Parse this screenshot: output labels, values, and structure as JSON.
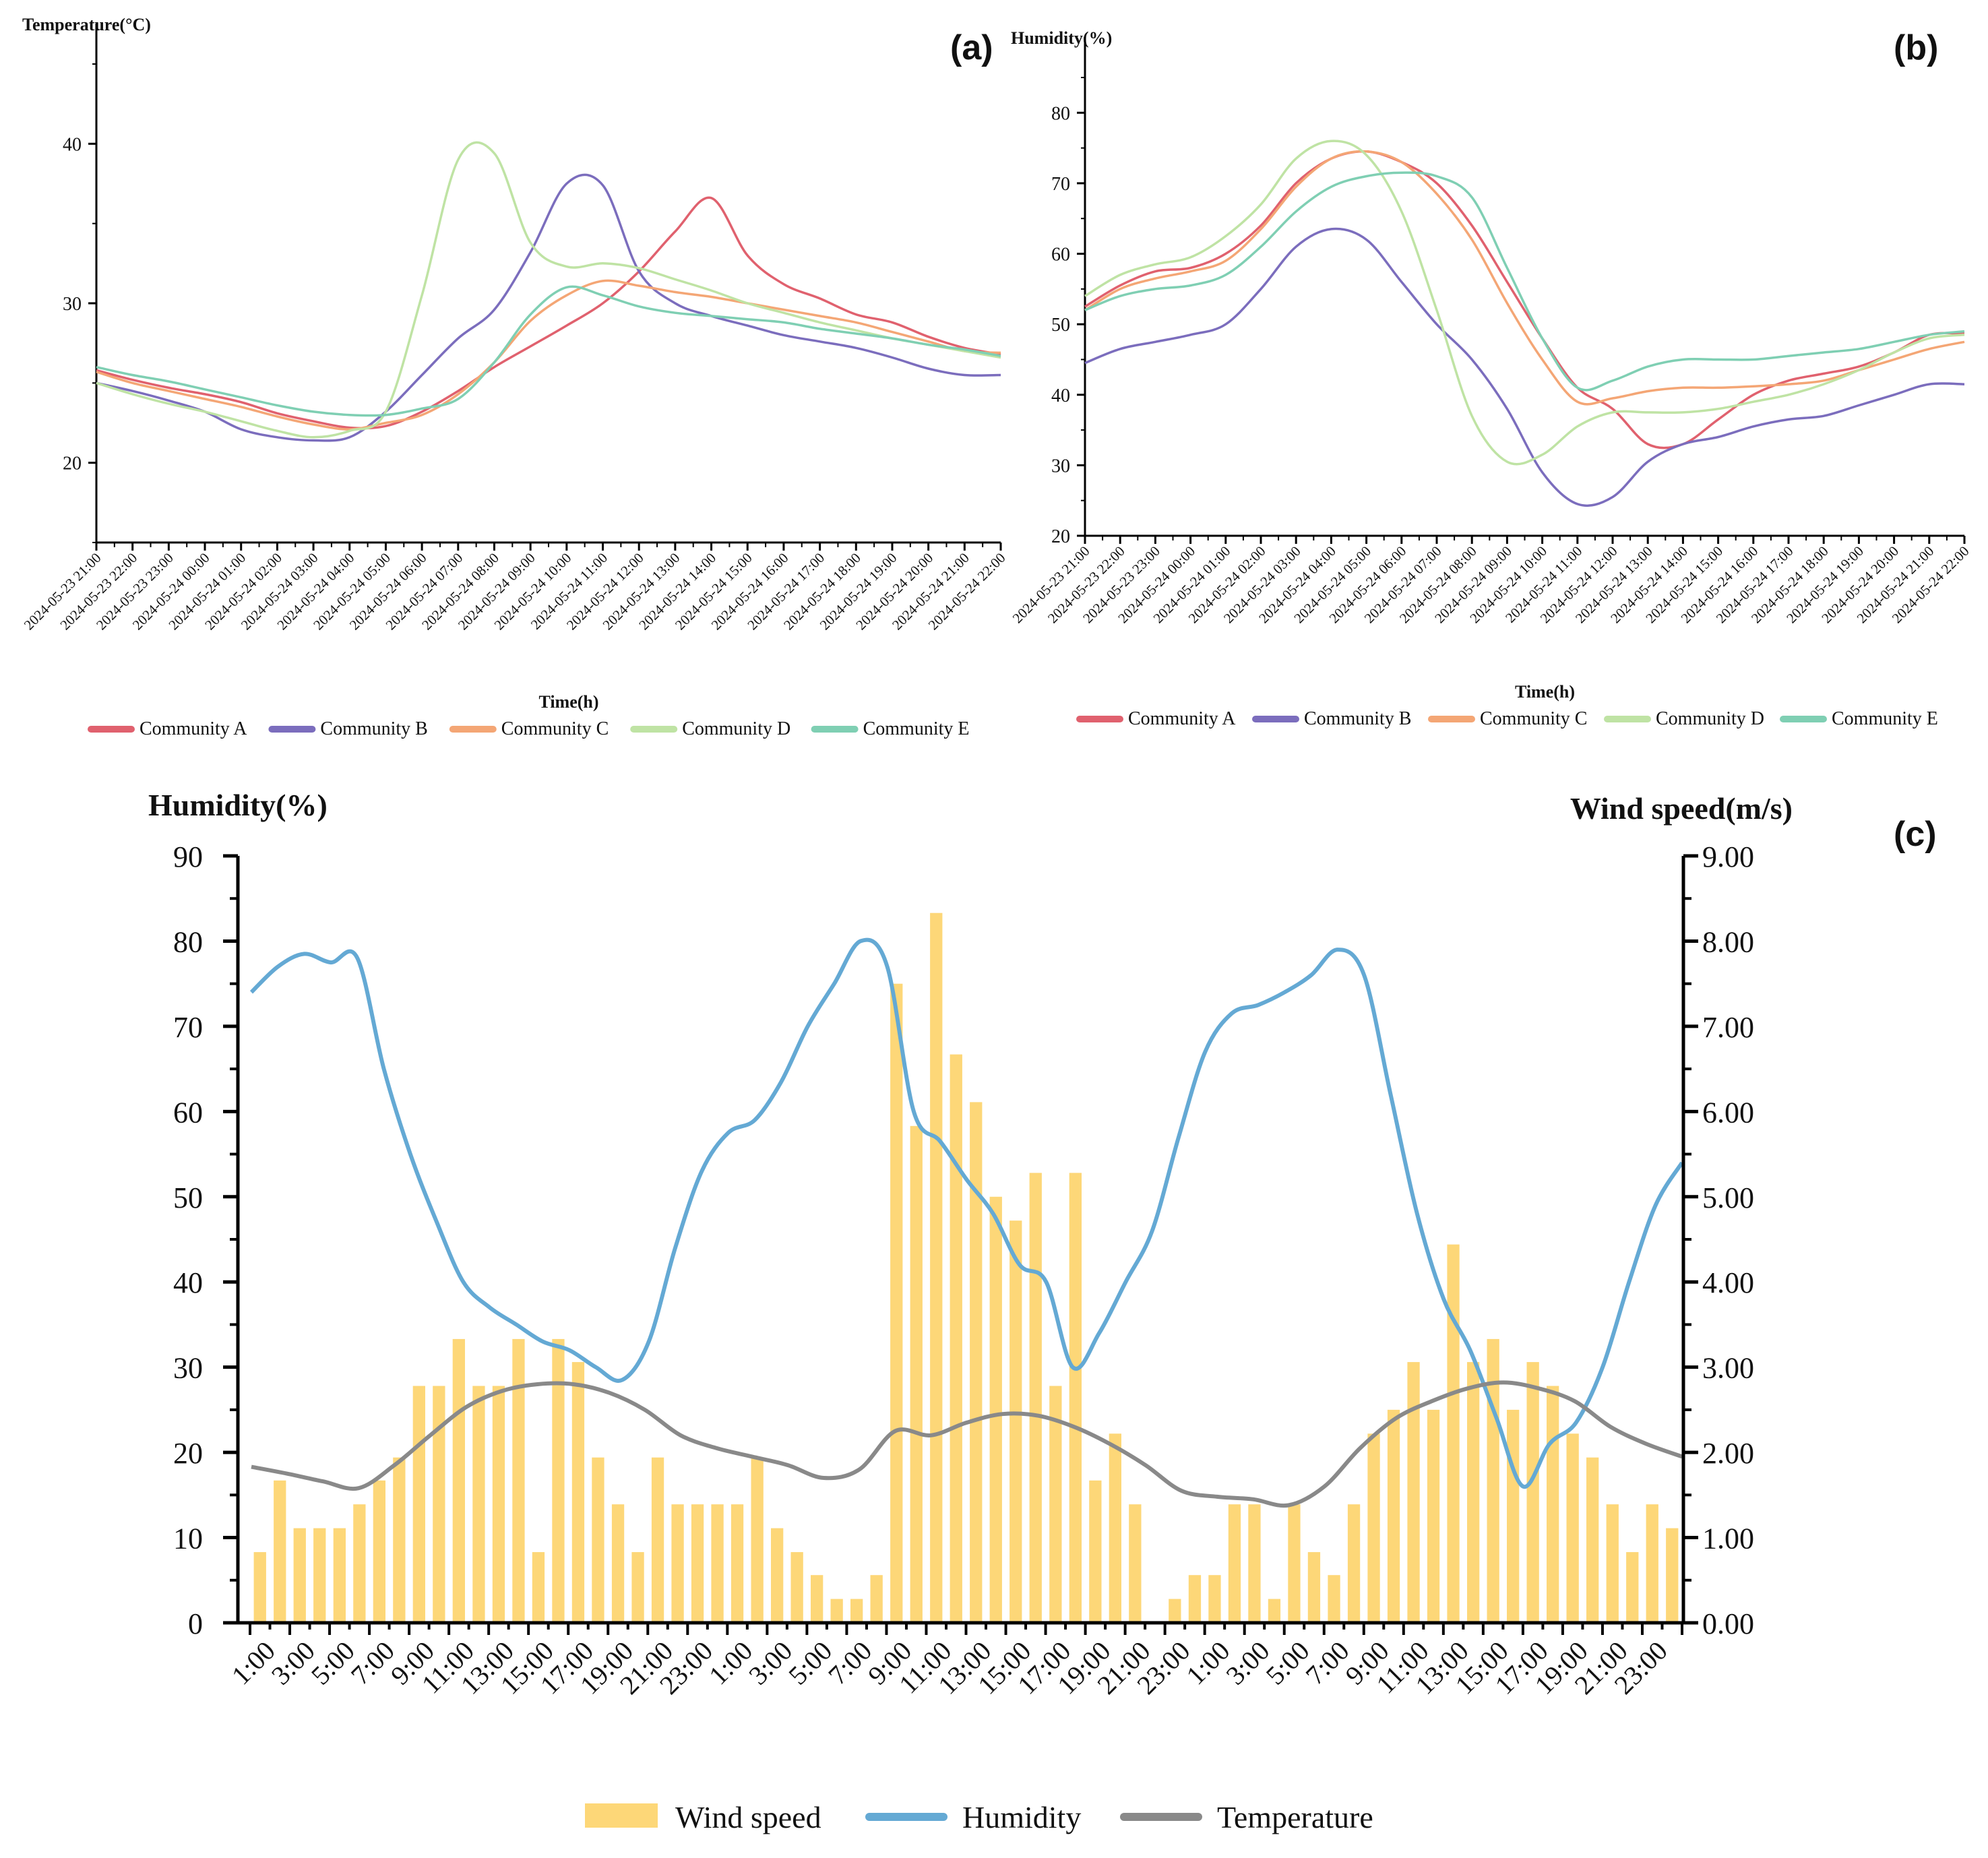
{
  "chart_data": [
    {
      "panel": "(a)",
      "type": "line",
      "ylabel": "Temperature(°C)",
      "xlabel": "Time(h)",
      "ylim": [
        15,
        45
      ],
      "yticks": [
        20,
        30,
        40
      ],
      "x": [
        "2024-05-23 21:00",
        "2024-05-23 22:00",
        "2024-05-23 23:00",
        "2024-05-24 00:00",
        "2024-05-24 01:00",
        "2024-05-24 02:00",
        "2024-05-24 03:00",
        "2024-05-24 04:00",
        "2024-05-24 05:00",
        "2024-05-24 06:00",
        "2024-05-24 07:00",
        "2024-05-24 08:00",
        "2024-05-24 09:00",
        "2024-05-24 10:00",
        "2024-05-24 11:00",
        "2024-05-24 12:00",
        "2024-05-24 13:00",
        "2024-05-24 14:00",
        "2024-05-24 15:00",
        "2024-05-24 16:00",
        "2024-05-24 17:00",
        "2024-05-24 18:00",
        "2024-05-24 19:00",
        "2024-05-24 20:00",
        "2024-05-24 21:00",
        "2024-05-24 22:00"
      ],
      "series": [
        {
          "name": "Community A",
          "color": "#e0616e",
          "values": [
            25.8,
            25.2,
            24.7,
            24.3,
            23.8,
            23.1,
            22.6,
            22.2,
            22.3,
            23.2,
            24.5,
            26.0,
            27.3,
            28.6,
            30.0,
            32.0,
            34.5,
            36.6,
            33.0,
            31.2,
            30.3,
            29.3,
            28.8,
            27.9,
            27.2,
            26.8
          ]
        },
        {
          "name": "Community B",
          "color": "#7b6dbd",
          "values": [
            25.0,
            24.5,
            23.9,
            23.2,
            22.1,
            21.6,
            21.4,
            21.6,
            23.2,
            25.5,
            27.8,
            29.6,
            33.2,
            37.5,
            37.4,
            32.0,
            30.0,
            29.2,
            28.6,
            28.0,
            27.6,
            27.2,
            26.6,
            25.9,
            25.5,
            25.5
          ]
        },
        {
          "name": "Community C",
          "color": "#f4a675",
          "values": [
            25.7,
            25.0,
            24.5,
            24.0,
            23.5,
            22.9,
            22.4,
            22.1,
            22.5,
            23.0,
            24.3,
            26.3,
            28.9,
            30.5,
            31.4,
            31.1,
            30.7,
            30.4,
            30.0,
            29.6,
            29.2,
            28.8,
            28.2,
            27.6,
            27.0,
            26.9
          ]
        },
        {
          "name": "Community D",
          "color": "#bfe3a4",
          "values": [
            25.0,
            24.3,
            23.7,
            23.2,
            22.6,
            22.0,
            21.6,
            22.0,
            23.2,
            30.5,
            39.0,
            39.4,
            33.8,
            32.3,
            32.5,
            32.2,
            31.5,
            30.8,
            30.0,
            29.4,
            28.8,
            28.3,
            27.8,
            27.4,
            27.0,
            26.6
          ]
        },
        {
          "name": "Community E",
          "color": "#7fcfb3",
          "values": [
            26.0,
            25.5,
            25.1,
            24.6,
            24.1,
            23.6,
            23.2,
            23.0,
            23.0,
            23.4,
            24.0,
            26.3,
            29.3,
            31.0,
            30.5,
            29.8,
            29.4,
            29.2,
            29.0,
            28.8,
            28.4,
            28.1,
            27.8,
            27.4,
            27.1,
            26.7
          ]
        }
      ]
    },
    {
      "panel": "(b)",
      "type": "line",
      "ylabel": "Humidity(%)",
      "xlabel": "Time(h)",
      "ylim": [
        20,
        85
      ],
      "yticks": [
        20,
        30,
        40,
        50,
        60,
        70,
        80
      ],
      "x": [
        "2024-05-23 21:00",
        "2024-05-23 22:00",
        "2024-05-23 23:00",
        "2024-05-24 00:00",
        "2024-05-24 01:00",
        "2024-05-24 02:00",
        "2024-05-24 03:00",
        "2024-05-24 04:00",
        "2024-05-24 05:00",
        "2024-05-24 06:00",
        "2024-05-24 07:00",
        "2024-05-24 08:00",
        "2024-05-24 09:00",
        "2024-05-24 10:00",
        "2024-05-24 11:00",
        "2024-05-24 12:00",
        "2024-05-24 13:00",
        "2024-05-24 14:00",
        "2024-05-24 15:00",
        "2024-05-24 16:00",
        "2024-05-24 17:00",
        "2024-05-24 18:00",
        "2024-05-24 19:00",
        "2024-05-24 20:00",
        "2024-05-24 21:00",
        "2024-05-24 22:00"
      ],
      "series": [
        {
          "name": "Community A",
          "color": "#e0616e",
          "values": [
            52.5,
            55.5,
            57.5,
            58.0,
            60.0,
            64.0,
            70.0,
            73.5,
            74.5,
            73.0,
            70.0,
            64.0,
            56.0,
            48.0,
            41.0,
            38.0,
            33.0,
            33.0,
            36.5,
            40.0,
            42.0,
            43.0,
            44.0,
            46.0,
            48.5,
            48.7
          ]
        },
        {
          "name": "Community B",
          "color": "#7b6dbd",
          "values": [
            44.5,
            46.5,
            47.5,
            48.5,
            50.0,
            55.0,
            61.0,
            63.5,
            62.0,
            56.0,
            50.0,
            45.0,
            38.0,
            29.0,
            24.5,
            25.5,
            30.5,
            33.0,
            34.0,
            35.5,
            36.5,
            37.0,
            38.5,
            40.0,
            41.5,
            41.5
          ]
        },
        {
          "name": "Community C",
          "color": "#f4a675",
          "values": [
            52.0,
            55.0,
            56.5,
            57.5,
            59.0,
            63.5,
            69.5,
            73.5,
            74.5,
            73.0,
            68.5,
            62.0,
            53.0,
            45.0,
            39.0,
            39.5,
            40.5,
            41.0,
            41.0,
            41.2,
            41.5,
            42.0,
            43.5,
            45.0,
            46.5,
            47.5
          ]
        },
        {
          "name": "Community D",
          "color": "#bfe3a4",
          "values": [
            54.0,
            57.0,
            58.5,
            59.5,
            62.5,
            67.0,
            73.5,
            76.0,
            74.0,
            66.0,
            52.0,
            37.0,
            30.5,
            31.5,
            35.5,
            37.5,
            37.5,
            37.5,
            38.0,
            39.0,
            40.0,
            41.5,
            43.5,
            46.0,
            48.0,
            48.5
          ]
        },
        {
          "name": "Community E",
          "color": "#7fcfb3",
          "values": [
            52.0,
            54.0,
            55.0,
            55.5,
            57.0,
            61.0,
            66.0,
            69.5,
            71.0,
            71.5,
            71.0,
            68.0,
            58.0,
            48.0,
            41.0,
            42.0,
            44.0,
            45.0,
            45.0,
            45.0,
            45.5,
            46.0,
            46.5,
            47.5,
            48.5,
            49.0
          ]
        }
      ]
    },
    {
      "panel": "(c)",
      "type": "bar+line",
      "left_ylabel": "Humidity(%)",
      "right_ylabel": "Wind speed(m/s)",
      "left_ylim": [
        0,
        90
      ],
      "left_yticks": [
        "0",
        "10",
        "20",
        "30",
        "40",
        "50",
        "60",
        "70",
        "80",
        "90"
      ],
      "right_ylim": [
        0,
        9
      ],
      "right_yticks": [
        "0.00",
        "1.00",
        "2.00",
        "3.00",
        "4.00",
        "5.00",
        "6.00",
        "7.00",
        "8.00",
        "9.00"
      ],
      "x_ticklabels": [
        "1:00",
        "3:00",
        "5:00",
        "7:00",
        "9:00",
        "11:00",
        "13:00",
        "15:00",
        "17:00",
        "19:00",
        "21:00",
        "23:00",
        "1:00",
        "3:00",
        "5:00",
        "7:00",
        "9:00",
        "11:00",
        "13:00",
        "15:00",
        "17:00",
        "19:00",
        "21:00",
        "23:00",
        "1:00",
        "3:00",
        "5:00",
        "7:00",
        "9:00",
        "11:00",
        "13:00",
        "15:00",
        "17:00",
        "19:00",
        "21:00",
        "23:00"
      ],
      "wind_speed": [
        0.83,
        1.67,
        1.11,
        1.11,
        1.11,
        1.39,
        1.67,
        1.94,
        2.78,
        2.78,
        3.33,
        2.78,
        2.78,
        3.33,
        0.83,
        3.33,
        3.06,
        1.94,
        1.39,
        0.83,
        1.94,
        1.39,
        1.39,
        1.39,
        1.39,
        1.94,
        1.11,
        0.83,
        0.56,
        0.28,
        0.28,
        0.56,
        7.5,
        5.83,
        8.33,
        6.67,
        6.11,
        5.0,
        4.72,
        5.28,
        2.78,
        5.28,
        1.67,
        2.22,
        1.39,
        0,
        0.28,
        0.56,
        0.56,
        1.39,
        1.39,
        0.28,
        1.39,
        0.83,
        0.56,
        1.39,
        2.22,
        2.5,
        3.06,
        2.5,
        4.44,
        3.06,
        3.33,
        2.5,
        3.06,
        2.78,
        2.22,
        1.94,
        1.39,
        0.83,
        1.39,
        1.11
      ],
      "humidity": [
        74,
        77,
        78.5,
        77.5,
        78,
        65,
        55,
        47,
        40,
        37,
        35,
        33,
        32,
        30,
        28.5,
        33,
        44,
        53,
        57.5,
        59,
        63.5,
        70,
        75,
        80,
        77,
        60,
        56.5,
        52,
        48,
        42,
        40,
        30,
        34,
        40,
        46,
        57,
        67,
        71.5,
        72.5,
        74,
        76,
        79,
        76,
        62,
        48,
        38,
        32,
        24,
        16,
        21,
        23.5,
        30,
        40,
        49,
        54
      ],
      "temperature": [
        18.3,
        17.5,
        16.6,
        15.8,
        18.5,
        22,
        25.3,
        27.2,
        28,
        28,
        27,
        25,
        22,
        20.5,
        19.5,
        18.5,
        17,
        18,
        22.5,
        22,
        23.5,
        24.5,
        24.3,
        23,
        21,
        18.5,
        15.5,
        14.8,
        14.5,
        13.8,
        16,
        20.5,
        24,
        26,
        27.5,
        28.2,
        27.5,
        26,
        23,
        21,
        19.5
      ]
    }
  ],
  "legend_c": [
    {
      "name": "Wind speed",
      "color": "#fdd778"
    },
    {
      "name": "Humidity",
      "color": "#64a9d4"
    },
    {
      "name": "Temperature",
      "color": "#898989"
    }
  ],
  "titles": {
    "a": "(a)",
    "b": "(b)",
    "c": "(c)"
  }
}
